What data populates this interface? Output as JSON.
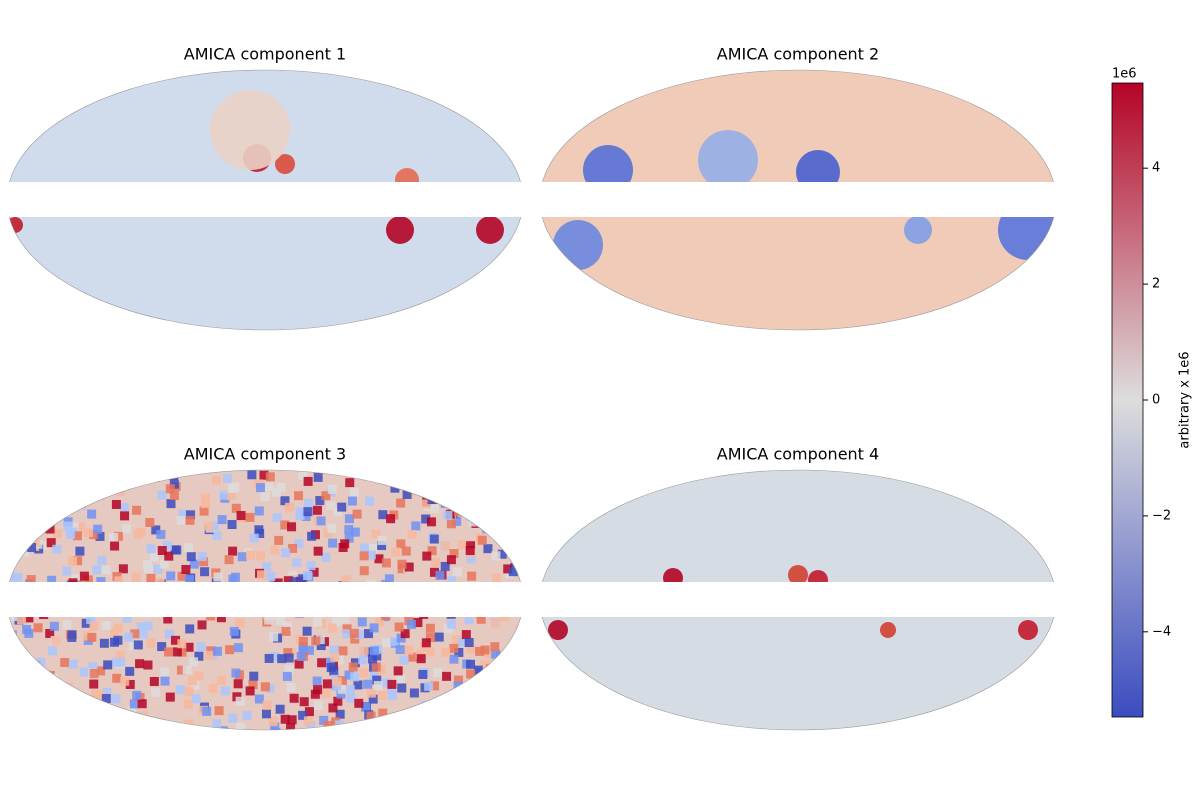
{
  "chart_data": {
    "type": "heatmap",
    "panels": [
      {
        "title": "AMICA component 1"
      },
      {
        "title": "AMICA component 2"
      },
      {
        "title": "AMICA component 3"
      },
      {
        "title": "AMICA component 4"
      }
    ],
    "colorbar": {
      "label": "arbitrary x 1e6",
      "offset_label": "1e6",
      "colors": [
        "#3b4cc0",
        "#dddddd",
        "#b40426"
      ],
      "ylim": [
        -5.47,
        5.47
      ],
      "yticks": [
        {
          "value": -4,
          "label": "−4"
        },
        {
          "value": -2,
          "label": "−2"
        },
        0,
        2,
        4
      ]
    }
  }
}
